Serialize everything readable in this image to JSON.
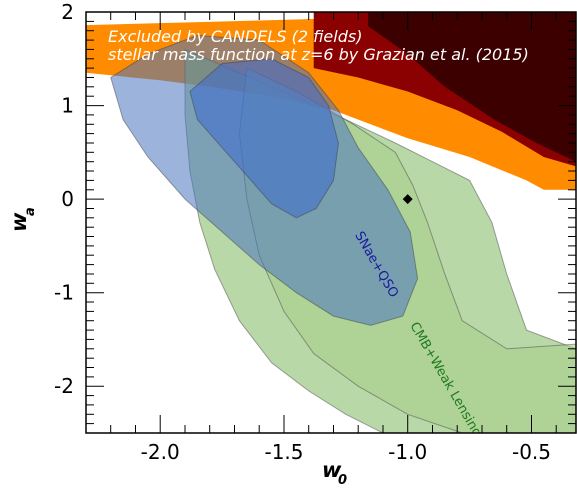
{
  "chart_data": {
    "type": "area",
    "xlabel": "w",
    "xlabel_sub": "0",
    "ylabel": "w",
    "ylabel_sub": "a",
    "xlim": [
      -2.3,
      -0.32
    ],
    "ylim": [
      -2.5,
      2.0
    ],
    "xticks": [
      -2.0,
      -1.5,
      -1.0,
      -0.5
    ],
    "xtick_labels": [
      "-2.0",
      "-1.5",
      "-1.0",
      "-0.5"
    ],
    "yticks": [
      -2,
      -1,
      0,
      1,
      2
    ],
    "ytick_labels": [
      "-2",
      "-1",
      "0",
      "1",
      "2"
    ],
    "grid": false,
    "annotations": {
      "excluded_line1": "Excluded by CANDELS (2 fields)",
      "excluded_line2": "stellar mass function at z=6 by Grazian et al. (2015)"
    },
    "fiducial_point": {
      "x": -1.0,
      "y": 0.0,
      "marker": "diamond",
      "color": "#000000"
    },
    "regions": [
      {
        "id": "candels-excluded-outer",
        "color": "#ff8c00",
        "polygon": [
          [
            -2.3,
            1.86
          ],
          [
            -0.32,
            2.0
          ],
          [
            -0.32,
            0.1
          ],
          [
            -0.45,
            0.1
          ],
          [
            -0.52,
            0.2
          ],
          [
            -0.75,
            0.45
          ],
          [
            -1.0,
            0.65
          ],
          [
            -1.3,
            0.95
          ],
          [
            -1.55,
            1.1
          ],
          [
            -1.8,
            1.2
          ],
          [
            -2.0,
            1.27
          ],
          [
            -2.3,
            1.35
          ]
        ]
      },
      {
        "id": "candels-excluded-mid",
        "color": "#8b0000",
        "polygon": [
          [
            -1.38,
            2.0
          ],
          [
            -0.32,
            2.0
          ],
          [
            -0.32,
            0.35
          ],
          [
            -0.45,
            0.45
          ],
          [
            -0.62,
            0.72
          ],
          [
            -0.8,
            0.95
          ],
          [
            -1.0,
            1.15
          ],
          [
            -1.2,
            1.3
          ],
          [
            -1.38,
            1.4
          ]
        ]
      },
      {
        "id": "candels-excluded-inner",
        "color": "#3c0000",
        "polygon": [
          [
            -1.16,
            2.0
          ],
          [
            -0.32,
            2.0
          ],
          [
            -0.32,
            0.4
          ],
          [
            -0.48,
            0.6
          ],
          [
            -0.65,
            0.85
          ],
          [
            -0.85,
            1.2
          ],
          [
            -1.0,
            1.55
          ],
          [
            -1.16,
            1.85
          ]
        ]
      },
      {
        "id": "cmb-weak-lensing-2sigma",
        "name": "CMB+Weak Lensing",
        "color": "#8bbe6e",
        "polygon": [
          [
            -1.9,
            1.6
          ],
          [
            -1.55,
            1.2
          ],
          [
            -1.25,
            0.85
          ],
          [
            -1.05,
            0.6
          ],
          [
            -0.9,
            0.4
          ],
          [
            -0.75,
            0.2
          ],
          [
            -0.66,
            -0.25
          ],
          [
            -0.6,
            -0.8
          ],
          [
            -0.52,
            -1.4
          ],
          [
            -0.32,
            -1.6
          ],
          [
            -0.32,
            -2.5
          ],
          [
            -1.1,
            -2.5
          ],
          [
            -1.25,
            -2.3
          ],
          [
            -1.4,
            -2.05
          ],
          [
            -1.55,
            -1.75
          ],
          [
            -1.68,
            -1.3
          ],
          [
            -1.78,
            -0.75
          ],
          [
            -1.84,
            -0.25
          ],
          [
            -1.88,
            0.3
          ],
          [
            -1.9,
            0.9
          ]
        ]
      },
      {
        "id": "cmb-weak-lensing-1sigma",
        "color": "#a8cf8c",
        "polygon": [
          [
            -1.65,
            1.4
          ],
          [
            -1.45,
            1.15
          ],
          [
            -1.22,
            0.8
          ],
          [
            -1.05,
            0.5
          ],
          [
            -0.98,
            0.15
          ],
          [
            -0.92,
            -0.25
          ],
          [
            -0.85,
            -0.8
          ],
          [
            -0.78,
            -1.3
          ],
          [
            -0.6,
            -1.6
          ],
          [
            -0.32,
            -1.55
          ],
          [
            -0.32,
            -2.5
          ],
          [
            -0.78,
            -2.5
          ],
          [
            -1.0,
            -2.3
          ],
          [
            -1.2,
            -2.0
          ],
          [
            -1.38,
            -1.65
          ],
          [
            -1.5,
            -1.2
          ],
          [
            -1.6,
            -0.6
          ],
          [
            -1.65,
            0.0
          ],
          [
            -1.68,
            0.7
          ]
        ]
      },
      {
        "id": "snae-qso-2sigma",
        "name": "SNae+QSO",
        "color": "#4a74c0",
        "polygon": [
          [
            -2.2,
            1.3
          ],
          [
            -2.05,
            1.55
          ],
          [
            -1.85,
            1.75
          ],
          [
            -1.6,
            1.7
          ],
          [
            -1.4,
            1.35
          ],
          [
            -1.28,
            0.95
          ],
          [
            -1.2,
            0.55
          ],
          [
            -1.08,
            0.1
          ],
          [
            -0.99,
            -0.35
          ],
          [
            -0.96,
            -0.85
          ],
          [
            -1.02,
            -1.25
          ],
          [
            -1.15,
            -1.35
          ],
          [
            -1.3,
            -1.25
          ],
          [
            -1.45,
            -1.0
          ],
          [
            -1.6,
            -0.7
          ],
          [
            -1.75,
            -0.35
          ],
          [
            -1.9,
            0.0
          ],
          [
            -2.05,
            0.45
          ],
          [
            -2.15,
            0.85
          ]
        ]
      },
      {
        "id": "snae-qso-1sigma",
        "color": "#3d6ad0",
        "polygon": [
          [
            -1.88,
            1.15
          ],
          [
            -1.75,
            1.45
          ],
          [
            -1.55,
            1.5
          ],
          [
            -1.4,
            1.3
          ],
          [
            -1.32,
            1.0
          ],
          [
            -1.28,
            0.6
          ],
          [
            -1.3,
            0.2
          ],
          [
            -1.37,
            -0.1
          ],
          [
            -1.45,
            -0.2
          ],
          [
            -1.55,
            -0.05
          ],
          [
            -1.65,
            0.25
          ],
          [
            -1.75,
            0.55
          ],
          [
            -1.85,
            0.85
          ]
        ]
      }
    ],
    "region_labels": [
      {
        "text": "SNae+QSO",
        "x": -1.14,
        "y": -0.72,
        "angle": 60,
        "color": "#1a1aa0"
      },
      {
        "text": "CMB+Weak Lensing",
        "x": -0.86,
        "y": -1.95,
        "angle": 60,
        "color": "#1f7a1f"
      }
    ]
  }
}
